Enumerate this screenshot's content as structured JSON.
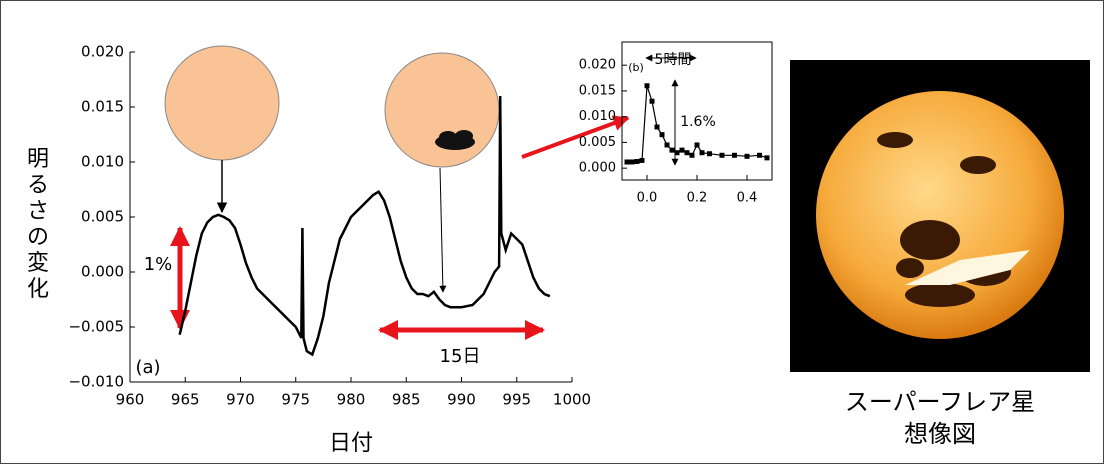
{
  "chart_data": [
    {
      "type": "line",
      "xlabel": "日付",
      "ylabel": "明るさの変化",
      "annotations": [
        "(a)",
        "1%",
        "15日"
      ],
      "color": "#000000",
      "xlim": [
        960,
        1000
      ],
      "xticks": [
        960,
        965,
        970,
        975,
        980,
        985,
        990,
        995,
        1000
      ],
      "ylim": [
        -0.01,
        0.02
      ],
      "yticks": [
        {
          "value": -0.01,
          "label": "−0.010"
        },
        {
          "value": -0.005,
          "label": "−0.005"
        },
        {
          "value": 0,
          "label": "0.000"
        },
        {
          "value": 0.005,
          "label": "0.005"
        },
        {
          "value": 0.01,
          "label": "0.010"
        },
        {
          "value": 0.015,
          "label": "0.015"
        },
        {
          "value": 0.02,
          "label": "0.020"
        }
      ],
      "x": [
        964.5,
        965,
        965.5,
        966,
        966.5,
        967,
        967.5,
        968,
        968.5,
        969,
        969.5,
        970,
        970.5,
        971,
        971.5,
        972,
        972.5,
        973,
        973.5,
        974,
        974.5,
        975,
        975.5,
        975.6,
        975.7,
        976,
        976.5,
        977,
        977.5,
        978,
        978.5,
        979,
        979.5,
        980,
        980.5,
        981,
        981.5,
        982,
        982.5,
        983,
        983.5,
        984,
        984.5,
        985,
        985.5,
        986,
        986.5,
        987,
        987.5,
        988,
        988.5,
        989,
        990,
        991,
        991.5,
        992,
        992.5,
        993,
        993.4,
        993.5,
        993.6,
        994,
        994.5,
        995,
        995.5,
        996,
        996.5,
        997,
        997.5,
        998
      ],
      "values": [
        -0.0057,
        -0.0035,
        -0.001,
        0.0015,
        0.0035,
        0.0045,
        0.005,
        0.0052,
        0.005,
        0.0047,
        0.004,
        0.0025,
        0.0008,
        -0.0005,
        -0.0015,
        -0.002,
        -0.0025,
        -0.003,
        -0.0035,
        -0.004,
        -0.0045,
        -0.005,
        -0.006,
        0.004,
        -0.006,
        -0.0072,
        -0.0075,
        -0.006,
        -0.004,
        -0.001,
        0.001,
        0.003,
        0.004,
        0.005,
        0.0055,
        0.006,
        0.0065,
        0.007,
        0.0073,
        0.0065,
        0.005,
        0.003,
        0.001,
        -0.0005,
        -0.0015,
        -0.002,
        -0.002,
        -0.0022,
        -0.0018,
        -0.0025,
        -0.003,
        -0.0032,
        -0.0032,
        -0.003,
        -0.0025,
        -0.002,
        -0.001,
        0.0,
        0.0005,
        0.016,
        0.0035,
        0.002,
        0.0035,
        0.003,
        0.0025,
        0.001,
        -0.0005,
        -0.0015,
        -0.002,
        -0.0022
      ]
    },
    {
      "type": "line",
      "annotations": [
        "(b)",
        "5時間",
        "1.6%"
      ],
      "color": "#000000",
      "xlim": [
        -0.1,
        0.5
      ],
      "xticks": [
        {
          "value": 0,
          "label": "0.0"
        },
        {
          "value": 0.2,
          "label": "0.2"
        },
        {
          "value": 0.4,
          "label": "0.4"
        }
      ],
      "ylim": [
        -0.0023,
        0.0245
      ],
      "yticks": [
        {
          "value": 0,
          "label": "0.000"
        },
        {
          "value": 0.005,
          "label": "0.005"
        },
        {
          "value": 0.01,
          "label": "0.010"
        },
        {
          "value": 0.015,
          "label": "0.015"
        },
        {
          "value": 0.02,
          "label": "0.020"
        }
      ],
      "x": [
        -0.08,
        -0.06,
        -0.04,
        -0.02,
        0.0,
        0.02,
        0.04,
        0.06,
        0.08,
        0.1,
        0.12,
        0.14,
        0.16,
        0.18,
        0.2,
        0.22,
        0.25,
        0.3,
        0.35,
        0.4,
        0.45,
        0.48
      ],
      "values": [
        0.0012,
        0.0012,
        0.0013,
        0.0015,
        0.016,
        0.013,
        0.008,
        0.0065,
        0.0045,
        0.0035,
        0.003,
        0.0035,
        0.003,
        0.0025,
        0.0045,
        0.003,
        0.0028,
        0.0025,
        0.0025,
        0.0023,
        0.0025,
        0.002
      ]
    }
  ],
  "image_caption": [
    "スーパーフレア星",
    "想像図"
  ]
}
